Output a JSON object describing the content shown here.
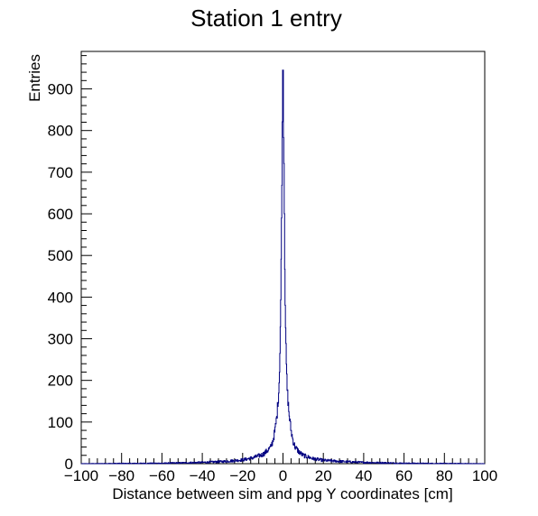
{
  "chart_data": {
    "type": "histogram",
    "title": "Station 1 entry",
    "xlabel": "Distance between sim and ppg Y coordinates [cm]",
    "ylabel": "Entries",
    "xlim": [
      -100,
      100
    ],
    "ylim": [
      0,
      990
    ],
    "xticks": [
      "−100",
      "−80",
      "−60",
      "−40",
      "−20",
      "0",
      "20",
      "40",
      "60",
      "80",
      "100"
    ],
    "yticks": [
      "0",
      "100",
      "200",
      "300",
      "400",
      "500",
      "600",
      "700",
      "800",
      "900"
    ],
    "grid": false,
    "line_color": "#000080",
    "series": [
      {
        "x": [
          -60,
          -50,
          -40,
          -30,
          -20,
          -15,
          -10,
          -8,
          -6,
          -5,
          -4,
          -3,
          -2,
          -1.5,
          -1,
          -0.5,
          0,
          0.5,
          1,
          1.5,
          2,
          3,
          4,
          5,
          6,
          8,
          10,
          15,
          20,
          30,
          40,
          50,
          60
        ],
        "values": [
          1,
          2,
          3,
          5,
          9,
          14,
          22,
          30,
          40,
          55,
          78,
          115,
          180,
          270,
          420,
          700,
          945,
          730,
          430,
          270,
          185,
          120,
          80,
          55,
          40,
          28,
          20,
          12,
          8,
          5,
          3,
          2,
          1
        ]
      }
    ]
  }
}
